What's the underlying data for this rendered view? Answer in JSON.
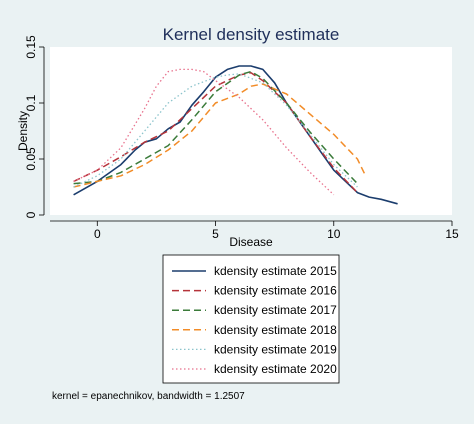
{
  "chart_data": {
    "type": "line",
    "title": "Kernel density estimate",
    "xlabel": "Disease",
    "ylabel": "Density",
    "xlim": [
      -2,
      15
    ],
    "ylim": [
      0,
      0.15
    ],
    "xticks": [
      0,
      5,
      10,
      15
    ],
    "yticks": [
      0,
      0.05,
      0.1,
      0.15
    ],
    "xtick_labels": [
      "0",
      "5",
      "10",
      "15"
    ],
    "ytick_labels": [
      "0",
      "0.05",
      "0.1",
      "0.15"
    ],
    "grid": false,
    "legend_position": "bottom",
    "note": "kernel = epanechnikov, bandwidth = 1.2507",
    "series": [
      {
        "name": "kdensity estimate 2015",
        "color": "#1b3d6d",
        "dash": "solid",
        "x": [
          -1,
          0,
          1,
          1.6,
          2,
          2.5,
          3,
          3.5,
          4,
          4.5,
          5,
          5.5,
          6,
          6.5,
          7,
          7.5,
          8,
          8.5,
          9,
          9.5,
          10,
          10.5,
          11,
          11.5,
          12,
          12.7
        ],
        "y": [
          0.018,
          0.03,
          0.045,
          0.058,
          0.065,
          0.068,
          0.077,
          0.083,
          0.098,
          0.11,
          0.123,
          0.13,
          0.133,
          0.133,
          0.13,
          0.118,
          0.1,
          0.085,
          0.07,
          0.055,
          0.04,
          0.03,
          0.02,
          0.016,
          0.014,
          0.01
        ]
      },
      {
        "name": "kdensity estimate 2016",
        "color": "#b5333a",
        "dash": "dash",
        "x": [
          -1,
          0,
          1,
          2,
          3,
          4,
          5,
          6,
          6.5,
          7,
          8,
          9,
          10,
          11
        ],
        "y": [
          0.03,
          0.04,
          0.052,
          0.065,
          0.075,
          0.095,
          0.115,
          0.125,
          0.127,
          0.12,
          0.1,
          0.07,
          0.042,
          0.02
        ]
      },
      {
        "name": "kdensity estimate 2017",
        "color": "#3b7b3a",
        "dash": "dash",
        "x": [
          -1,
          0,
          1,
          2,
          3,
          4,
          5,
          6,
          6.5,
          7,
          8,
          9,
          10,
          11
        ],
        "y": [
          0.028,
          0.03,
          0.038,
          0.05,
          0.062,
          0.085,
          0.11,
          0.125,
          0.128,
          0.122,
          0.1,
          0.074,
          0.05,
          0.028
        ]
      },
      {
        "name": "kdensity estimate 2018",
        "color": "#f28c28",
        "dash": "dash",
        "x": [
          -1,
          0,
          1,
          2,
          3,
          4,
          5,
          6,
          6.5,
          7,
          8,
          9,
          10,
          11,
          11.3
        ],
        "y": [
          0.025,
          0.03,
          0.035,
          0.045,
          0.058,
          0.075,
          0.1,
          0.108,
          0.115,
          0.117,
          0.108,
          0.09,
          0.072,
          0.05,
          0.037
        ]
      },
      {
        "name": "kdensity estimate 2019",
        "color": "#8cc4cc",
        "dash": "dot",
        "x": [
          -1,
          0,
          1,
          2,
          3,
          4,
          5,
          5.5,
          6,
          7,
          8,
          9,
          10,
          11
        ],
        "y": [
          0.025,
          0.035,
          0.05,
          0.075,
          0.1,
          0.115,
          0.123,
          0.125,
          0.126,
          0.118,
          0.098,
          0.072,
          0.045,
          0.025
        ]
      },
      {
        "name": "kdensity estimate 2020",
        "color": "#e8728d",
        "dash": "dot",
        "x": [
          -1,
          0,
          1,
          2,
          2.5,
          3,
          3.5,
          4,
          4.5,
          5,
          6,
          7,
          8,
          9,
          10
        ],
        "y": [
          0.03,
          0.04,
          0.06,
          0.095,
          0.115,
          0.128,
          0.13,
          0.13,
          0.128,
          0.12,
          0.105,
          0.085,
          0.06,
          0.038,
          0.018
        ]
      }
    ]
  }
}
